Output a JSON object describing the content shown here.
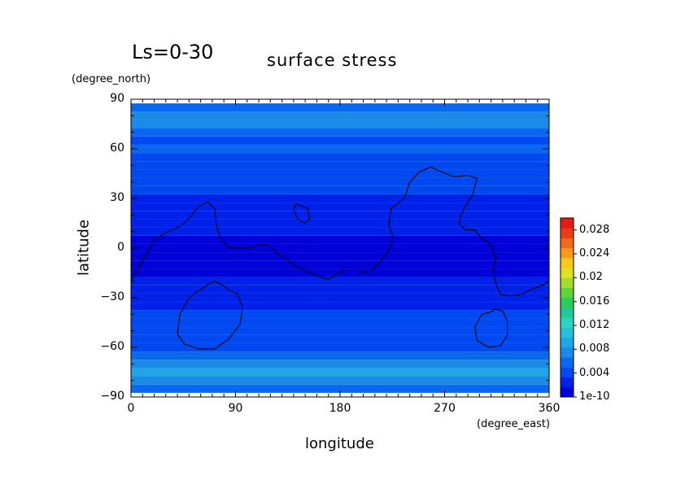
{
  "header": {
    "season_label": "Ls=0-30",
    "title": "surface stress"
  },
  "chart_data": {
    "type": "heatmap",
    "title": "surface stress",
    "xlabel": "longitude",
    "ylabel": "latitude",
    "x_units": "(degree_east)",
    "y_units": "(degree_north)",
    "xlim": [
      0,
      360
    ],
    "ylim": [
      -90,
      90
    ],
    "x_ticks": [
      0,
      90,
      180,
      270,
      360
    ],
    "y_ticks": [
      90,
      60,
      30,
      0,
      -30,
      -60,
      -90
    ],
    "x_tick_labels": [
      "0",
      "90",
      "180",
      "270",
      "360"
    ],
    "y_tick_labels": [
      "90",
      "60",
      "30",
      "0",
      "−30",
      "−60",
      "−90"
    ],
    "latitude_profile": {
      "latitudes": [
        -85,
        -80,
        -75,
        -70,
        -65,
        -60,
        -55,
        -50,
        -45,
        -40,
        -35,
        -30,
        -25,
        -20,
        -15,
        -10,
        -5,
        0,
        5,
        10,
        15,
        20,
        25,
        30,
        35,
        40,
        45,
        50,
        55,
        60,
        65,
        70,
        75,
        80,
        85
      ],
      "values": [
        0.006,
        0.008,
        0.009,
        0.0075,
        0.006,
        0.005,
        0.004,
        0.0045,
        0.0035,
        0.0035,
        0.003,
        0.0032,
        0.0025,
        0.002,
        0.0015,
        0.0015,
        0.0015,
        0.0015,
        0.0015,
        0.002,
        0.002,
        0.0025,
        0.003,
        0.003,
        0.0035,
        0.004,
        0.004,
        0.0045,
        0.005,
        0.0055,
        0.005,
        0.006,
        0.007,
        0.0075,
        0.006
      ]
    },
    "colorbar": {
      "labels": [
        "0.028",
        "0.024",
        "0.02",
        "0.016",
        "0.012",
        "0.008",
        "0.004",
        "1e-10"
      ],
      "label_values": [
        0.028,
        0.024,
        0.02,
        0.016,
        0.012,
        0.008,
        0.004,
        1e-10
      ],
      "range": [
        1e-10,
        0.03
      ],
      "colors": [
        "#0000d8",
        "#0022e8",
        "#0048f0",
        "#0a68f0",
        "#1a8ae6",
        "#20a6e6",
        "#26c0dd",
        "#2ad4c0",
        "#22c89a",
        "#2ccc5a",
        "#60d23a",
        "#a8dc2a",
        "#e2e020",
        "#f6c81e",
        "#f89a1c",
        "#f26a1a",
        "#ec3c16",
        "#e41c14"
      ]
    },
    "contours": [
      [
        [
          0,
          -20
        ],
        [
          8,
          -10
        ],
        [
          20,
          5
        ],
        [
          32,
          10
        ],
        [
          42,
          13
        ],
        [
          50,
          18
        ],
        [
          58,
          25
        ],
        [
          66,
          28
        ],
        [
          72,
          24
        ],
        [
          74,
          12
        ],
        [
          78,
          4
        ],
        [
          86,
          0
        ],
        [
          95,
          0
        ],
        [
          102,
          0
        ],
        [
          110,
          2
        ],
        [
          118,
          2
        ],
        [
          126,
          -3
        ],
        [
          134,
          -7
        ],
        [
          142,
          -11
        ],
        [
          152,
          -14
        ],
        [
          162,
          -17
        ],
        [
          170,
          -19
        ],
        [
          178,
          -15
        ],
        [
          186,
          -13
        ],
        [
          196,
          -13
        ],
        [
          204,
          -15
        ],
        [
          214,
          -9
        ],
        [
          222,
          -1
        ],
        [
          226,
          6
        ],
        [
          222,
          14
        ],
        [
          224,
          24
        ],
        [
          230,
          27
        ],
        [
          236,
          31
        ],
        [
          240,
          40
        ],
        [
          248,
          46
        ],
        [
          258,
          49
        ],
        [
          268,
          46
        ],
        [
          278,
          43
        ],
        [
          290,
          44
        ],
        [
          298,
          42
        ],
        [
          294,
          32
        ],
        [
          286,
          23
        ],
        [
          282,
          15
        ],
        [
          288,
          11
        ],
        [
          296,
          11
        ],
        [
          302,
          6
        ],
        [
          310,
          2
        ],
        [
          314,
          -6
        ],
        [
          312,
          -14
        ],
        [
          314,
          -21
        ],
        [
          318,
          -28
        ],
        [
          326,
          -29
        ],
        [
          336,
          -28
        ],
        [
          348,
          -24
        ],
        [
          356,
          -22
        ],
        [
          360,
          -20
        ]
      ],
      [
        [
          72,
          -20
        ],
        [
          62,
          -24
        ],
        [
          50,
          -30
        ],
        [
          42,
          -40
        ],
        [
          40,
          -52
        ],
        [
          46,
          -58
        ],
        [
          58,
          -61
        ],
        [
          72,
          -61
        ],
        [
          84,
          -55
        ],
        [
          94,
          -46
        ],
        [
          96,
          -36
        ],
        [
          92,
          -28
        ],
        [
          84,
          -25
        ],
        [
          78,
          -22
        ],
        [
          72,
          -20
        ]
      ],
      [
        [
          142,
          27
        ],
        [
          152,
          24
        ],
        [
          154,
          18
        ],
        [
          150,
          15
        ],
        [
          144,
          17
        ],
        [
          140,
          23
        ],
        [
          142,
          27
        ]
      ],
      [
        [
          308,
          -39
        ],
        [
          302,
          -40
        ],
        [
          296,
          -48
        ],
        [
          298,
          -56
        ],
        [
          308,
          -60
        ],
        [
          318,
          -59
        ],
        [
          324,
          -53
        ],
        [
          324,
          -44
        ],
        [
          320,
          -38
        ],
        [
          314,
          -37
        ],
        [
          308,
          -39
        ]
      ]
    ]
  }
}
